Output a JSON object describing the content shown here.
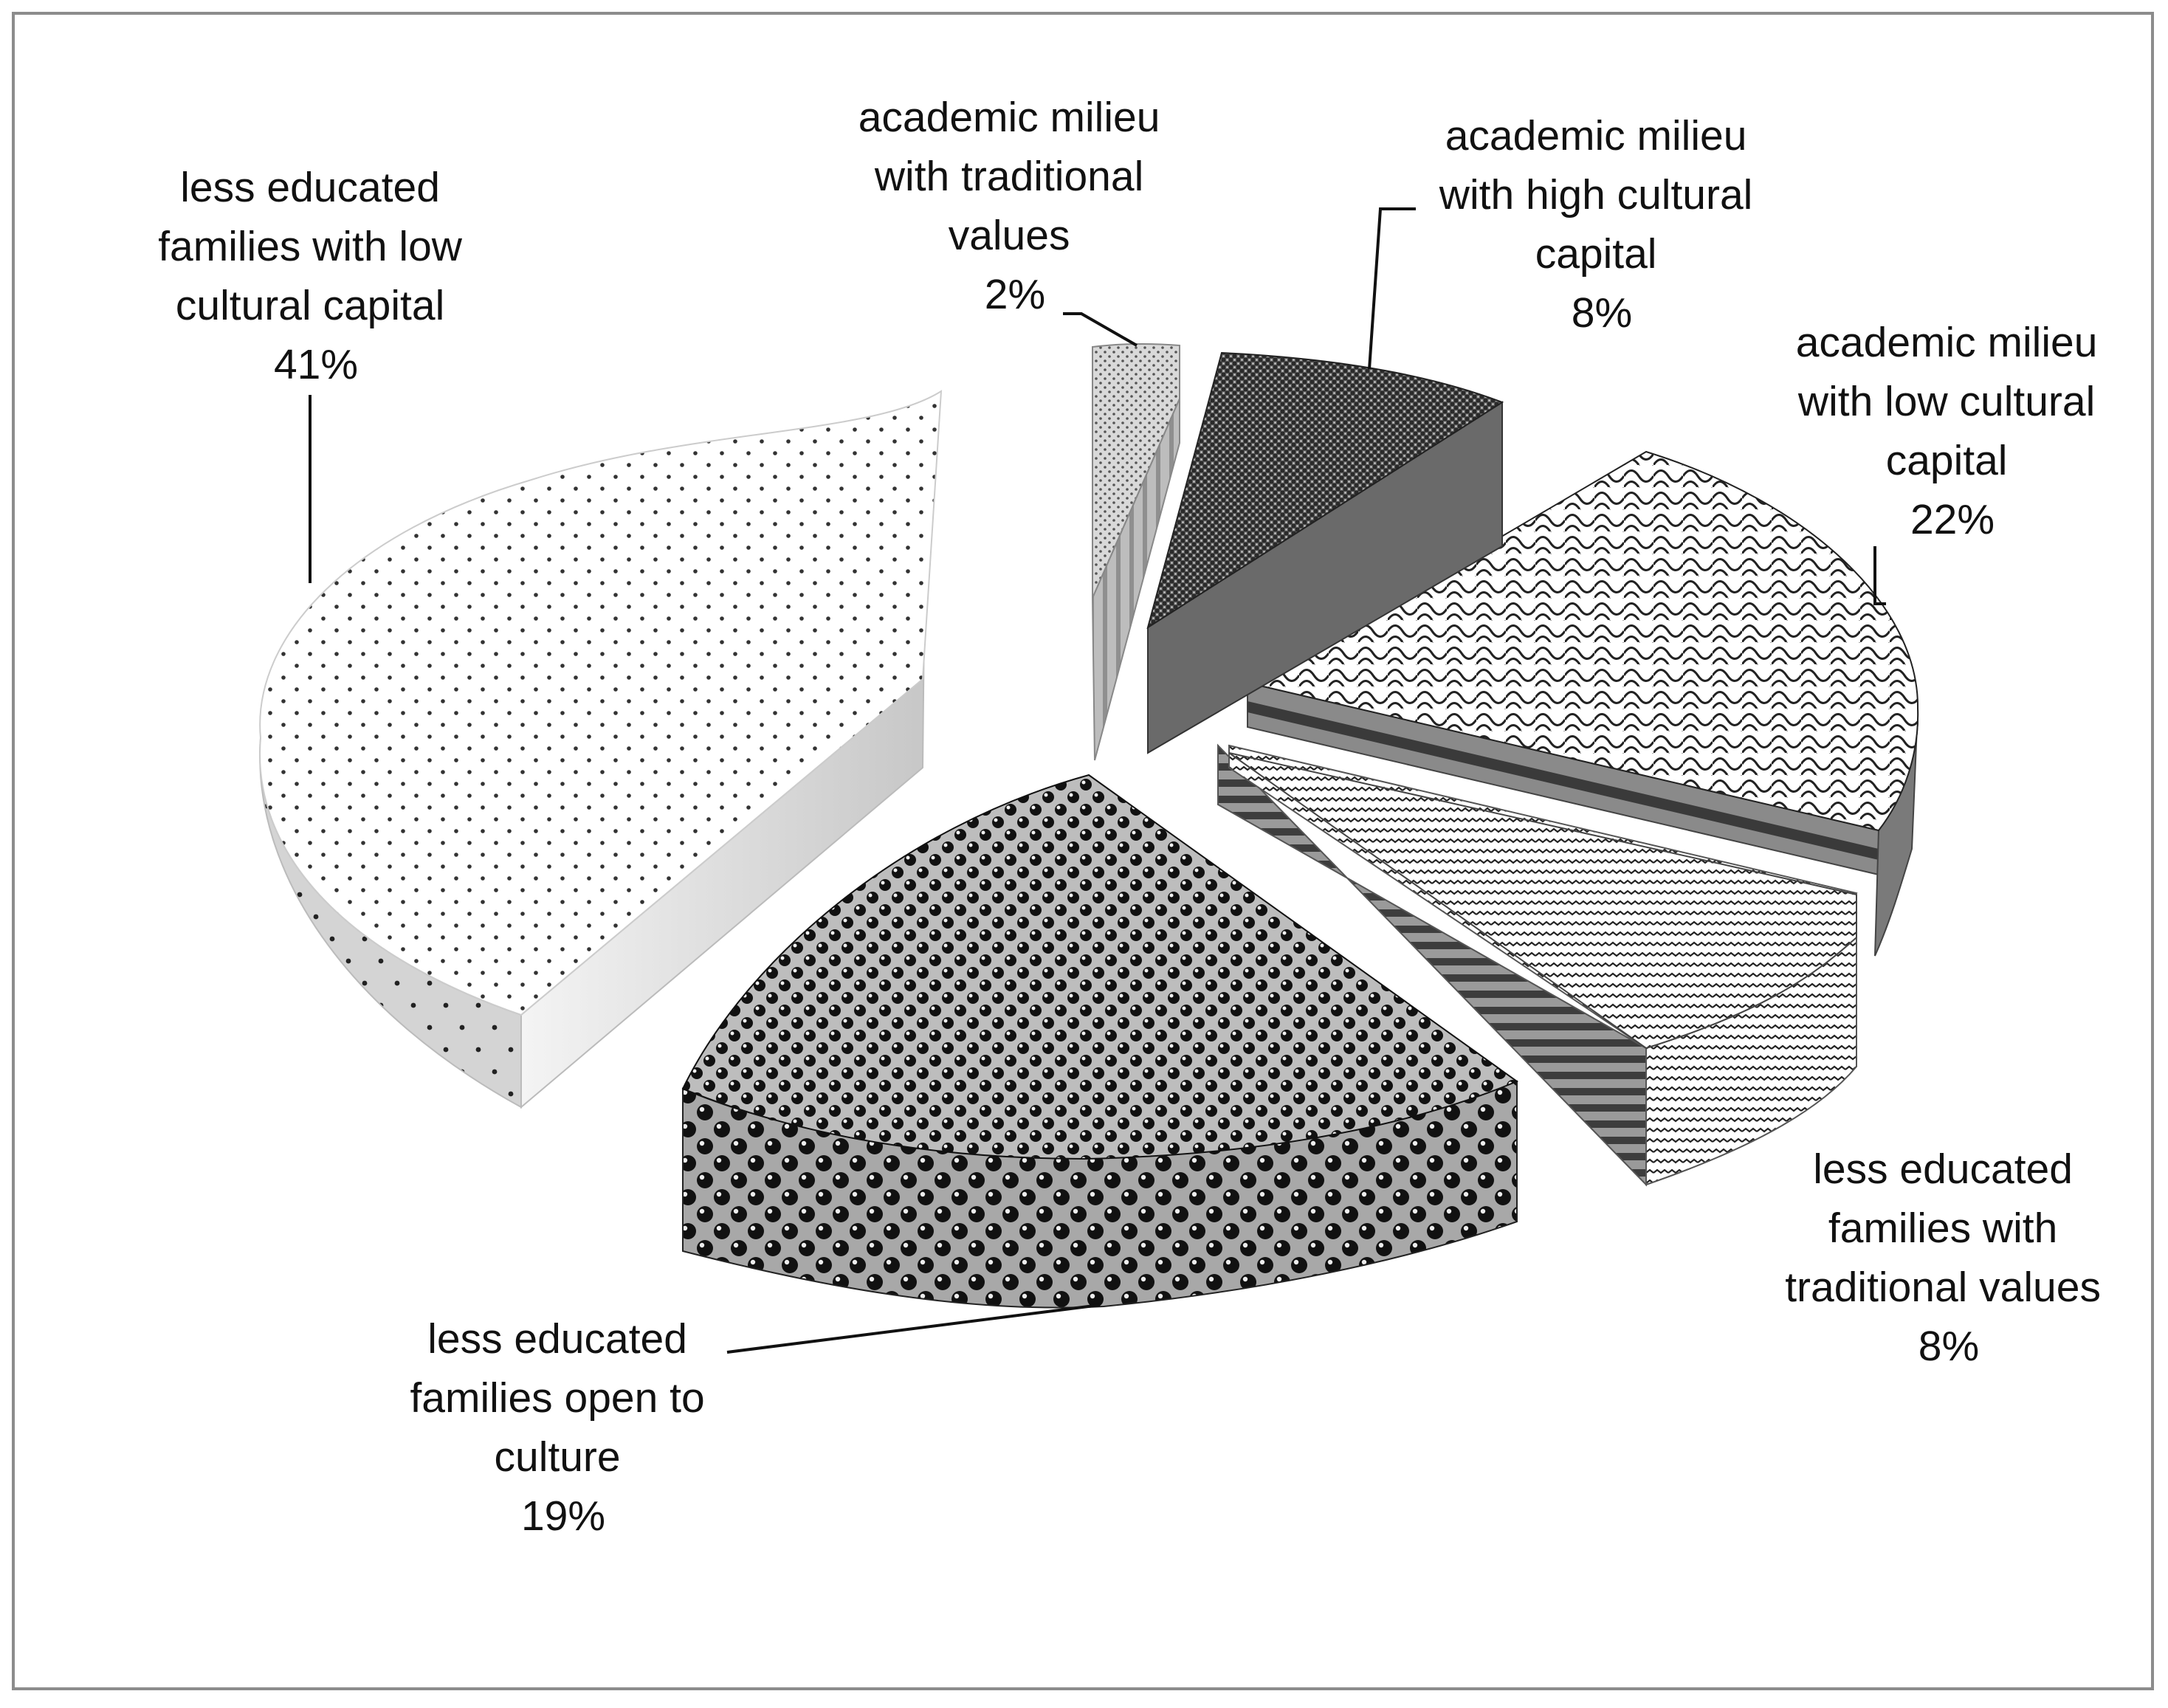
{
  "chart_data": {
    "type": "pie",
    "style": "3d-exploded",
    "legend": "none",
    "colors": {
      "dark": "#1a1a1a",
      "mid": "#777777",
      "light": "#d8d8d8",
      "frame": "#8c8c8c"
    },
    "slices": [
      {
        "lines": [
          "academic milieu",
          "with traditional",
          "values"
        ],
        "percent_label": "2%",
        "value": 2,
        "pattern": "fine-dots"
      },
      {
        "lines": [
          "academic milieu",
          "with high cultural",
          "capital"
        ],
        "percent_label": "8%",
        "value": 8,
        "pattern": "dark-mesh"
      },
      {
        "lines": [
          "academic milieu",
          "with low cultural",
          "capital"
        ],
        "percent_label": "22%",
        "value": 22,
        "pattern": "scallops"
      },
      {
        "lines": [
          "less educated",
          "families with",
          "traditional values"
        ],
        "percent_label": "8%",
        "value": 8,
        "pattern": "zigzag"
      },
      {
        "lines": [
          "less educated",
          "families open to",
          "culture"
        ],
        "percent_label": "19%",
        "value": 19,
        "pattern": "black-spheres"
      },
      {
        "lines": [
          "less educated",
          "families with low",
          "cultural capital"
        ],
        "percent_label": "41%",
        "value": 41,
        "pattern": "sparse-dots"
      }
    ]
  }
}
